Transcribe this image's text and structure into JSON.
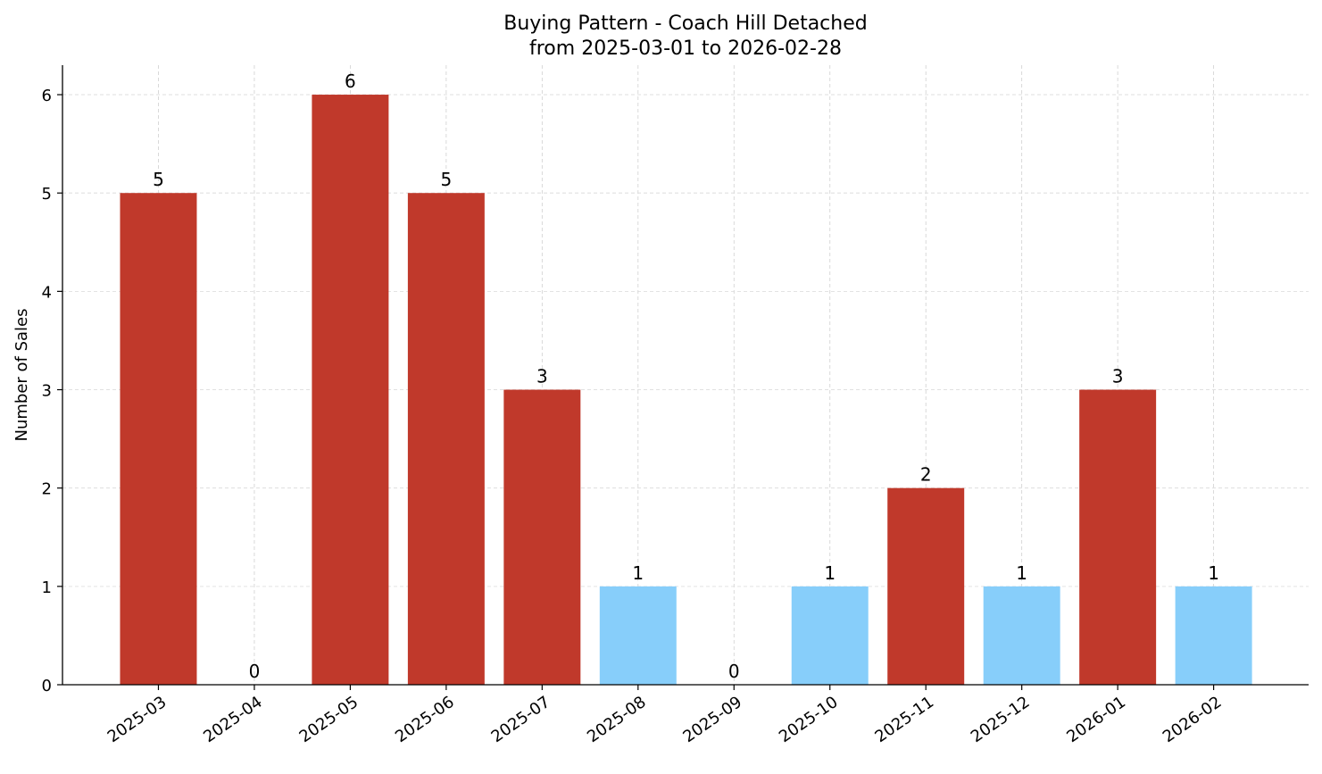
{
  "chart_data": {
    "type": "bar",
    "title": "Buying Pattern - Coach Hill Detached",
    "subtitle": "from 2025-03-01 to 2026-02-28",
    "xlabel": "",
    "ylabel": "Number of Sales",
    "categories": [
      "2025-03",
      "2025-04",
      "2025-05",
      "2025-06",
      "2025-07",
      "2025-08",
      "2025-09",
      "2025-10",
      "2025-11",
      "2025-12",
      "2026-01",
      "2026-02"
    ],
    "values": [
      5,
      0,
      6,
      5,
      3,
      1,
      0,
      1,
      2,
      1,
      3,
      1
    ],
    "bar_colors": [
      "#c0392b",
      "#c0392b",
      "#c0392b",
      "#c0392b",
      "#c0392b",
      "#87cefa",
      "#c0392b",
      "#87cefa",
      "#c0392b",
      "#87cefa",
      "#c0392b",
      "#87cefa"
    ],
    "ylim": [
      0,
      6.3
    ],
    "yticks": [
      0,
      1,
      2,
      3,
      4,
      5,
      6
    ],
    "grid": true,
    "data_labels": true
  }
}
